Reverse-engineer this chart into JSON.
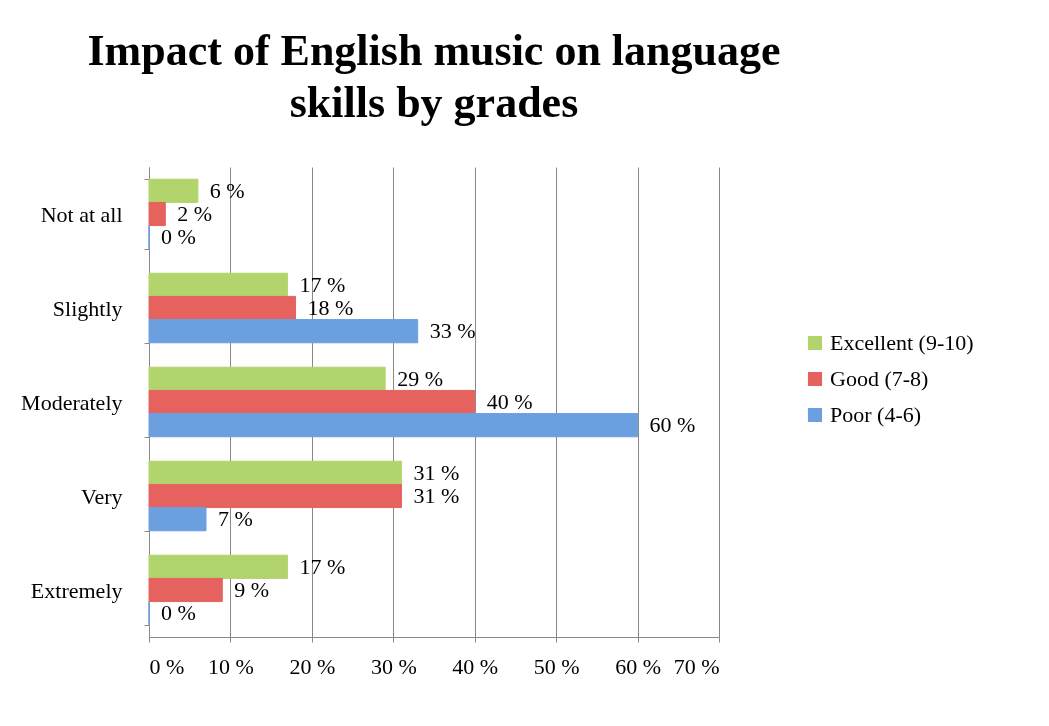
{
  "chart_data": {
    "type": "bar",
    "orientation": "horizontal",
    "title": "Impact of English music on language skills by grades",
    "categories": [
      "Not at all",
      "Slightly",
      "Moderately",
      "Very",
      "Extremely"
    ],
    "series": [
      {
        "name": "Excellent (9-10)",
        "color": "#b2d46c",
        "values": [
          6,
          17,
          29,
          31,
          17
        ],
        "value_labels": [
          "6 %",
          "17 %",
          "29 %",
          "31 %",
          "17 %"
        ]
      },
      {
        "name": "Good (7-8)",
        "color": "#e5625e",
        "values": [
          2,
          18,
          40,
          31,
          9
        ],
        "value_labels": [
          "2 %",
          "18 %",
          "40 %",
          "31 %",
          "9 %"
        ]
      },
      {
        "name": "Poor (4-6)",
        "color": "#6b9fe0",
        "values": [
          0,
          33,
          60,
          7,
          0
        ],
        "value_labels": [
          "0 %",
          "33 %",
          "60 %",
          "7 %",
          "0 %"
        ]
      }
    ],
    "xlim": [
      0,
      70
    ],
    "xticks": [
      {
        "value": 0,
        "label": "0 %"
      },
      {
        "value": 10,
        "label": "10 %"
      },
      {
        "value": 20,
        "label": "20 %"
      },
      {
        "value": 30,
        "label": "30 %"
      },
      {
        "value": 40,
        "label": "40 %"
      },
      {
        "value": 50,
        "label": "50 %"
      },
      {
        "value": 60,
        "label": "60 %"
      },
      {
        "value": 70,
        "label": "70 %"
      }
    ],
    "grid": "x",
    "legend": "right"
  }
}
